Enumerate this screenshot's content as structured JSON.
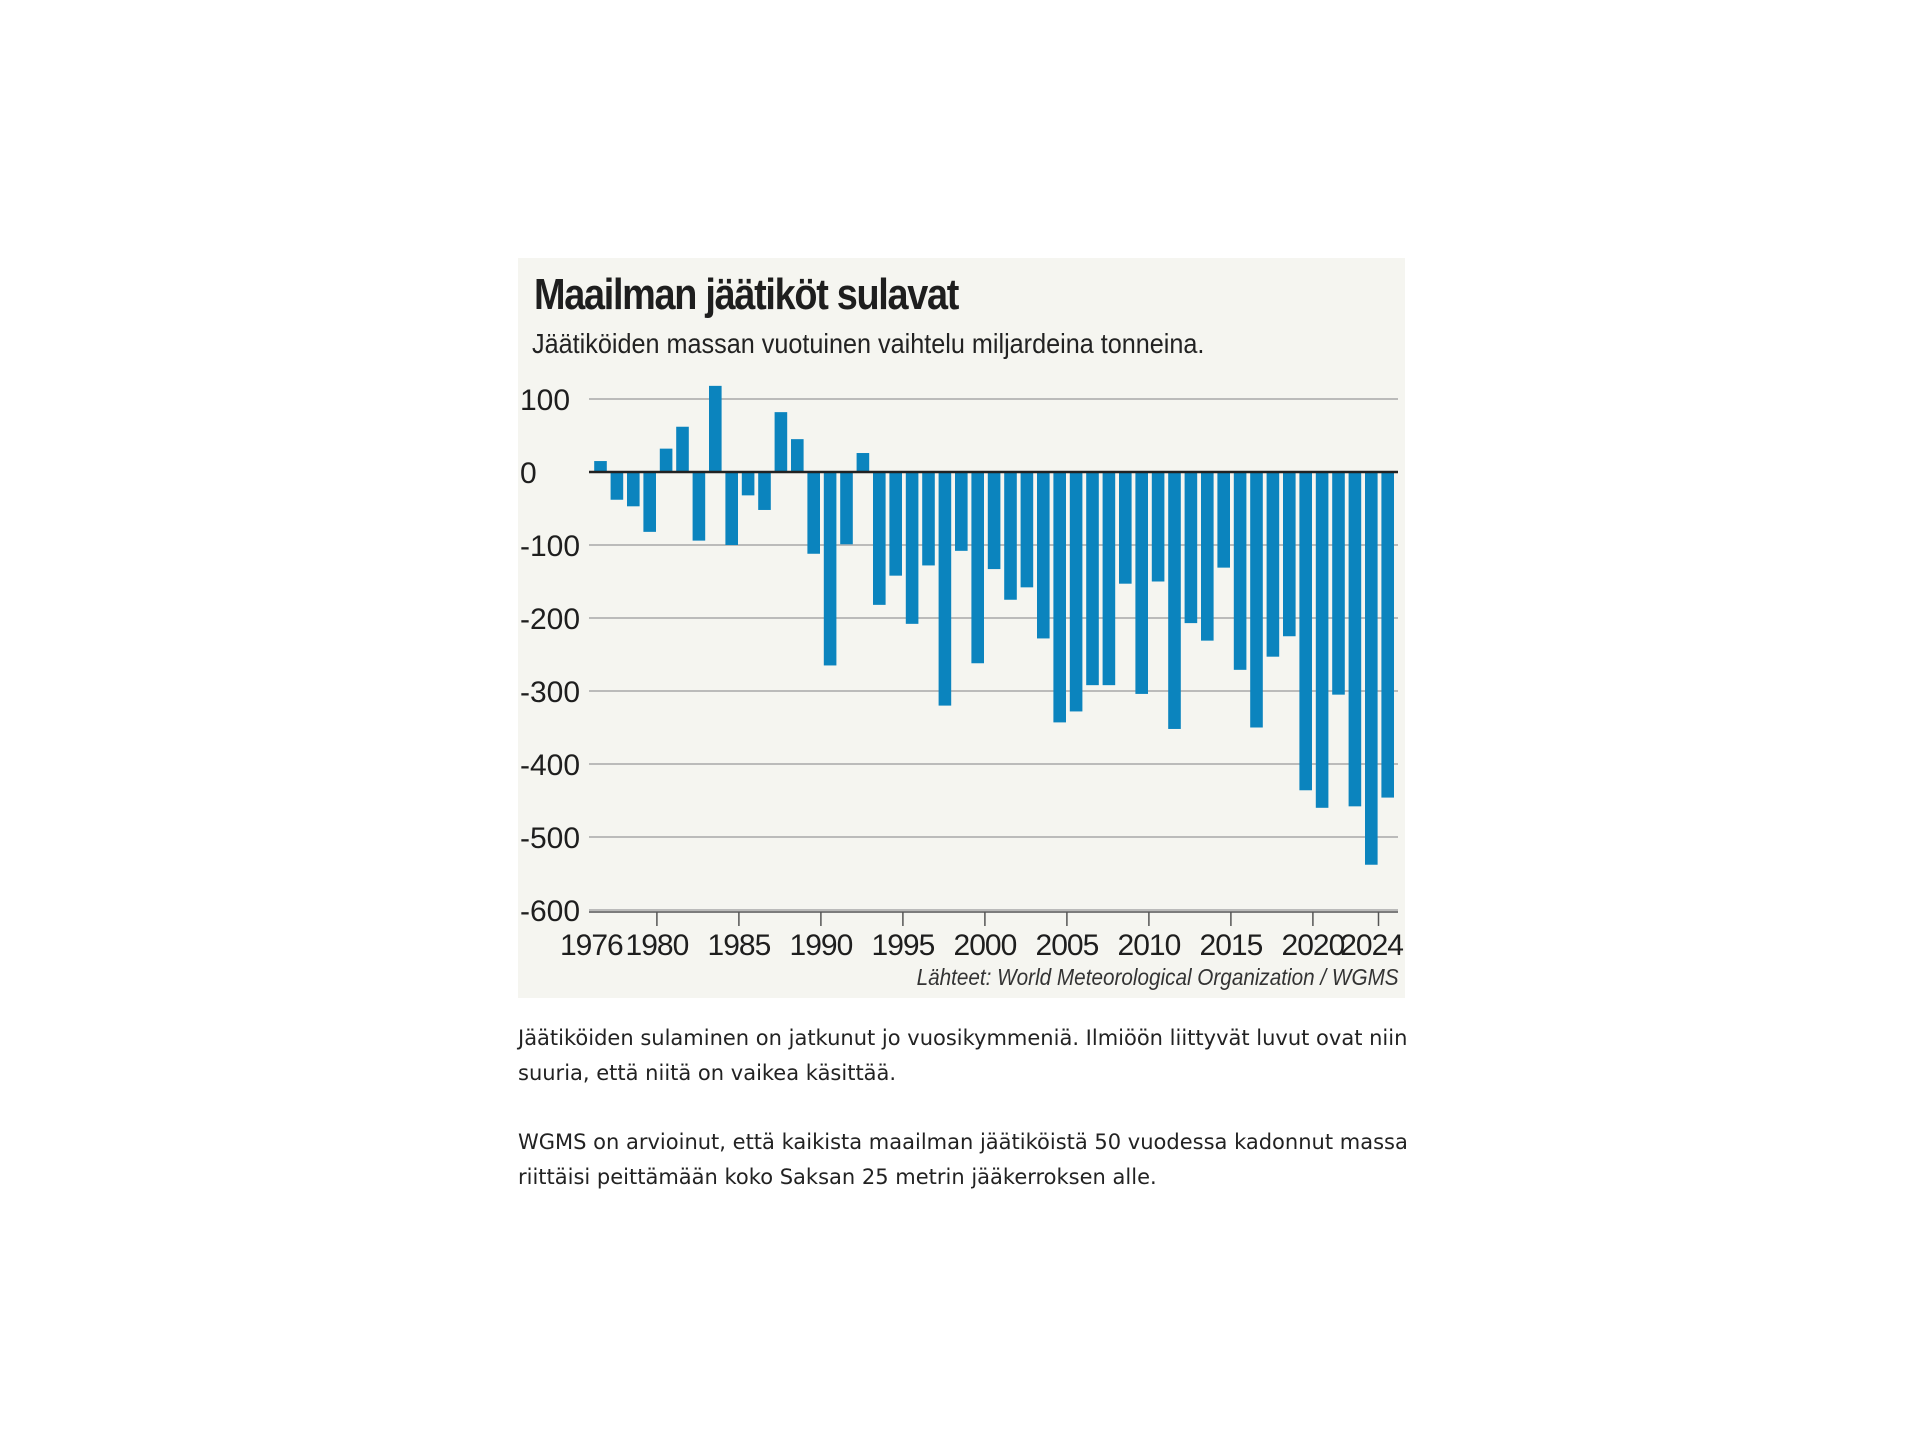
{
  "chart_data": {
    "type": "bar",
    "title": "Maailman jäätiköt sulavat",
    "subtitle": "Jäätiköiden massan vuotuinen vaihtelu miljardeina tonneina.",
    "source": "Lähteet: World Meteorological Organization / WGMS",
    "xlabel": "",
    "ylabel": "",
    "ylim": [
      -600,
      100
    ],
    "yticks": [
      100,
      0,
      -100,
      -200,
      -300,
      -400,
      -500,
      -600
    ],
    "ytick_labels": [
      "100",
      "0",
      "-100",
      "-200",
      "-300",
      "-400",
      "-500",
      "-600"
    ],
    "xtick_labels": [
      "1976",
      "1980",
      "1985",
      "1990",
      "1995",
      "2000",
      "2005",
      "2010",
      "2015",
      "2020",
      "2024"
    ],
    "xtick_years": [
      1976,
      1980,
      1985,
      1990,
      1995,
      2000,
      2005,
      2010,
      2015,
      2020,
      2024
    ],
    "categories": [
      1976,
      1977,
      1978,
      1979,
      1980,
      1981,
      1982,
      1983,
      1984,
      1985,
      1986,
      1987,
      1988,
      1989,
      1990,
      1991,
      1992,
      1993,
      1994,
      1995,
      1996,
      1997,
      1998,
      1999,
      2000,
      2001,
      2002,
      2003,
      2004,
      2005,
      2006,
      2007,
      2008,
      2009,
      2010,
      2011,
      2012,
      2013,
      2014,
      2015,
      2016,
      2017,
      2018,
      2019,
      2020,
      2021,
      2022,
      2023,
      2024
    ],
    "values": [
      15,
      -38,
      -47,
      -82,
      32,
      62,
      -94,
      118,
      -100,
      -32,
      -52,
      82,
      45,
      -112,
      -265,
      -99,
      26,
      -182,
      -142,
      -208,
      -128,
      -320,
      -108,
      -262,
      -133,
      -175,
      -158,
      -228,
      -343,
      -328,
      -292,
      -292,
      -153,
      -304,
      -150,
      -352,
      -207,
      -231,
      -131,
      -271,
      -350,
      -253,
      -225,
      -436,
      -460,
      -305,
      -458,
      -538,
      -446
    ],
    "bar_color": "#0b84be"
  },
  "body_text": {
    "paragraph1": "Jäätiköiden sulaminen on jatkunut jo vuosikymmeniä. Ilmiöön liittyvät luvut ovat niin suuria, että niitä on vaikea käsittää.",
    "paragraph2": "WGMS on arvioinut, että kaikista maailman jäätiköistä 50 vuodessa kadonnut massa riittäisi peittämään koko Saksan 25 metrin jääkerroksen alle."
  }
}
